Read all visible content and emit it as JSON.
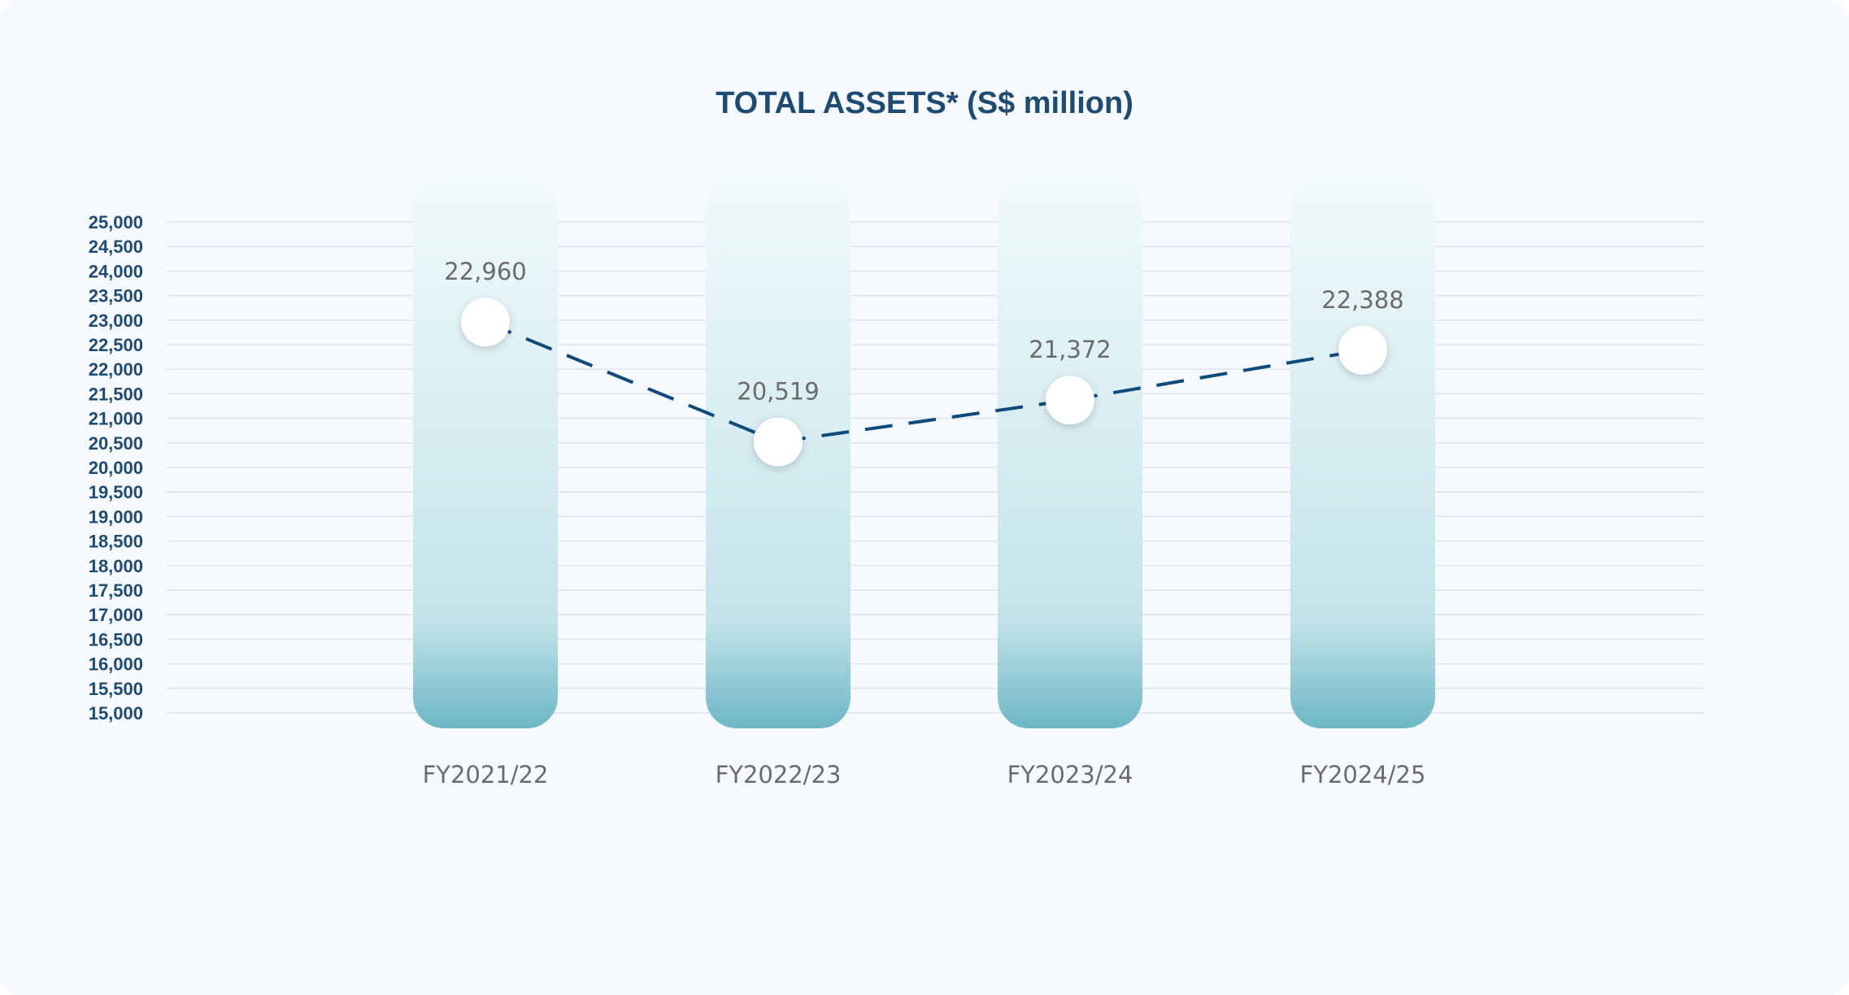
{
  "chart_data": {
    "type": "line",
    "title": "TOTAL ASSETS* (S$ million)",
    "xlabel": "",
    "ylabel": "",
    "categories": [
      "FY2021/22",
      "FY2022/23",
      "FY2023/24",
      "FY2024/25"
    ],
    "series": [
      {
        "name": "Total Assets",
        "values": [
          22960,
          20519,
          21372,
          22388
        ],
        "labels": [
          "22,960",
          "20,519",
          "21,372",
          "22,388"
        ]
      }
    ],
    "ylim": [
      15000,
      25000
    ],
    "ytick_step": 500,
    "yticks": [
      "15,000",
      "15,500",
      "16,000",
      "16,500",
      "17,000",
      "17,500",
      "18,000",
      "18,500",
      "19,000",
      "19,500",
      "20,000",
      "20,500",
      "21,000",
      "21,500",
      "22,000",
      "22,500",
      "23,000",
      "23,500",
      "24,000",
      "24,500",
      "25,000"
    ],
    "grid": true,
    "line_style": "dashed"
  },
  "colors": {
    "background": "#f6f9fd",
    "title": "#1e4b73",
    "ytick": "#1e4b73",
    "grid": "#dfe4ea",
    "line": "#0e4a7a",
    "label": "#6b6b6b",
    "category": "#6b6b6b",
    "column_top": "#f1fafb",
    "column_mid": "#c4e4ea",
    "column_bottom": "#6cb7c5",
    "marker": "#ffffff"
  }
}
